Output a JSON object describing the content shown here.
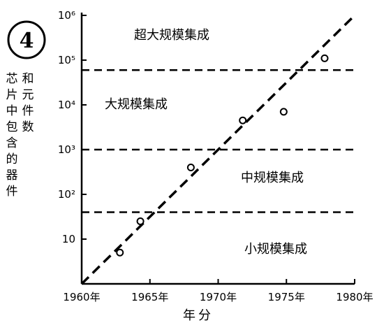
{
  "figure_number": "4",
  "chart_data": {
    "type": "scatter",
    "title": "",
    "xlabel": "年分",
    "ylabel": "芯片中包含的器件和元件数",
    "x_ticks": [
      "1960年",
      "1965年",
      "1970年",
      "1975年",
      "1980年"
    ],
    "x_tick_values": [
      1960,
      1965,
      1970,
      1975,
      1980
    ],
    "xlim": [
      1960,
      1980
    ],
    "y_scale": "log",
    "y_tick_labels": [
      "10",
      "10²",
      "10³",
      "10⁴",
      "10⁵",
      "10⁶"
    ],
    "y_tick_values": [
      10,
      100,
      1000,
      10000,
      100000,
      1000000
    ],
    "ylim": [
      1,
      1000000
    ],
    "points": [
      {
        "x": 1962.8,
        "y": 5
      },
      {
        "x": 1964.3,
        "y": 25
      },
      {
        "x": 1968.0,
        "y": 400
      },
      {
        "x": 1971.8,
        "y": 4500
      },
      {
        "x": 1974.8,
        "y": 7000
      },
      {
        "x": 1977.8,
        "y": 110000
      }
    ],
    "trend_line": {
      "style": "dashed",
      "from": {
        "x": 1960,
        "y": 1
      },
      "to": {
        "x": 1980,
        "y": 1000000
      }
    },
    "boundaries": [
      {
        "y": 40,
        "style": "dashed"
      },
      {
        "y": 1000,
        "style": "dashed"
      },
      {
        "y": 60000,
        "style": "dashed"
      }
    ],
    "regions": [
      {
        "label": "超大规模集成"
      },
      {
        "label": "大规模集成"
      },
      {
        "label": "中规模集成"
      },
      {
        "label": "小规模集成"
      }
    ],
    "grid": false,
    "legend": "none"
  }
}
